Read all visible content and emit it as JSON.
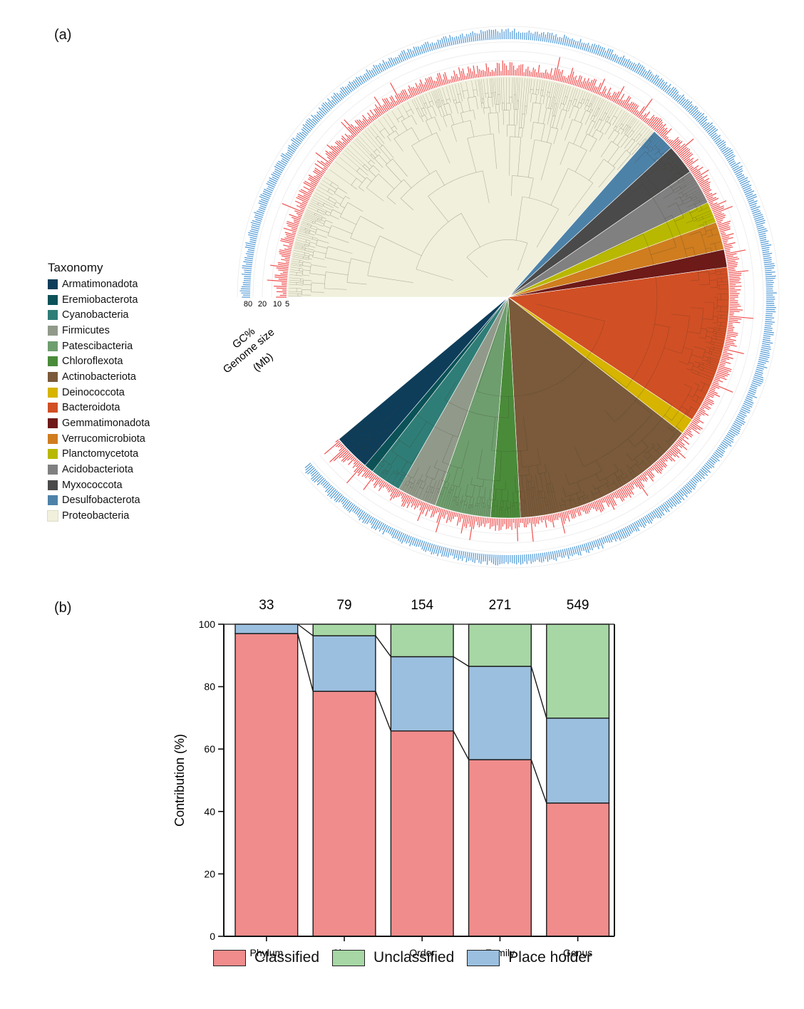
{
  "panels": {
    "a_label": "(a)",
    "b_label": "(b)"
  },
  "chart_data": [
    {
      "type": "circular-phylogeny",
      "ring_labels": {
        "gc": "GC%",
        "genome_size": "Genome size",
        "genome_unit": "(Mb)"
      },
      "ring_ticks": [
        "80",
        "20",
        "10",
        "5"
      ],
      "legend": {
        "title": "Taxonomy",
        "items": [
          {
            "name": "Armatimonadota",
            "color": "#0e3d5a"
          },
          {
            "name": "Eremiobacterota",
            "color": "#0a5258"
          },
          {
            "name": "Cyanobacteria",
            "color": "#2f7d77"
          },
          {
            "name": "Firmicutes",
            "color": "#919a8a"
          },
          {
            "name": "Patescibacteria",
            "color": "#6e9e6e"
          },
          {
            "name": "Chloroflexota",
            "color": "#4a8b3a"
          },
          {
            "name": "Actinobacteriota",
            "color": "#7a5a3a"
          },
          {
            "name": "Deinococcota",
            "color": "#d6b400"
          },
          {
            "name": "Bacteroidota",
            "color": "#d14f24"
          },
          {
            "name": "Gemmatimonadota",
            "color": "#6e1a18"
          },
          {
            "name": "Verrucomicrobiota",
            "color": "#cf7d1f"
          },
          {
            "name": "Planctomycetota",
            "color": "#b8b800"
          },
          {
            "name": "Acidobacteriota",
            "color": "#808080"
          },
          {
            "name": "Myxococcota",
            "color": "#4a4a4a"
          },
          {
            "name": "Desulfobacterota",
            "color": "#4d82a8"
          },
          {
            "name": "Proteobacteria",
            "color": "#f0f0dc"
          }
        ]
      },
      "sectors_deg_clockwise_from_east": [
        {
          "taxon": "Proteobacteria",
          "start": -180,
          "end": -48.6
        },
        {
          "taxon": "Desulfobacterota",
          "start": -48.6,
          "end": -42.5
        },
        {
          "taxon": "Myxococcota",
          "start": -42.5,
          "end": -34.6
        },
        {
          "taxon": "Acidobacteriota",
          "start": -34.6,
          "end": -25.4
        },
        {
          "taxon": "Planctomycetota",
          "start": -25.4,
          "end": -19.8
        },
        {
          "taxon": "Verrucomicrobiota",
          "start": -19.8,
          "end": -12.5
        },
        {
          "taxon": "Gemmatimonadota",
          "start": -12.5,
          "end": -7.8
        },
        {
          "taxon": "Bacteroidota",
          "start": -7.8,
          "end": 33.7
        },
        {
          "taxon": "Deinococcota",
          "start": 33.7,
          "end": 38.0
        },
        {
          "taxon": "Actinobacteriota",
          "start": 38.0,
          "end": 86.8
        },
        {
          "taxon": "Chloroflexota",
          "start": 86.8,
          "end": 94.6
        },
        {
          "taxon": "Patescibacteria",
          "start": 94.6,
          "end": 109.3
        },
        {
          "taxon": "Firmicutes",
          "start": 109.3,
          "end": 119.7
        },
        {
          "taxon": "Cyanobacteria",
          "start": 119.7,
          "end": 127.9
        },
        {
          "taxon": "Eremiobacterota",
          "start": 127.9,
          "end": 130.4
        },
        {
          "taxon": "Armatimonadota",
          "start": 130.4,
          "end": 140.0
        }
      ],
      "ring_colors": {
        "gc": "#f05050",
        "genome_size": "#5a9fd8"
      }
    },
    {
      "type": "bar",
      "stacked": true,
      "categories": [
        "Phylum",
        "Class",
        "Order",
        "Family",
        "Genus"
      ],
      "counts": [
        "33",
        "79",
        "154",
        "271",
        "549"
      ],
      "series": [
        {
          "name": "Classified",
          "color": "#f08c8c",
          "values": [
            97.0,
            78.5,
            65.8,
            56.6,
            42.7
          ]
        },
        {
          "name": "Place holder",
          "color": "#9bbfdf",
          "values": [
            3.0,
            17.8,
            23.8,
            29.9,
            27.2
          ]
        },
        {
          "name": "Unclassified",
          "color": "#a6d7a4",
          "values": [
            0.0,
            3.7,
            10.4,
            13.5,
            30.1
          ]
        }
      ],
      "legend_order": [
        "Classified",
        "Unclassified",
        "Place holder"
      ],
      "ylabel": "Contribution (%)",
      "xlabel": "",
      "ylim": [
        0,
        100
      ],
      "yticks": [
        "0",
        "20",
        "40",
        "60",
        "80",
        "100"
      ],
      "legend_position": "bottom"
    }
  ]
}
